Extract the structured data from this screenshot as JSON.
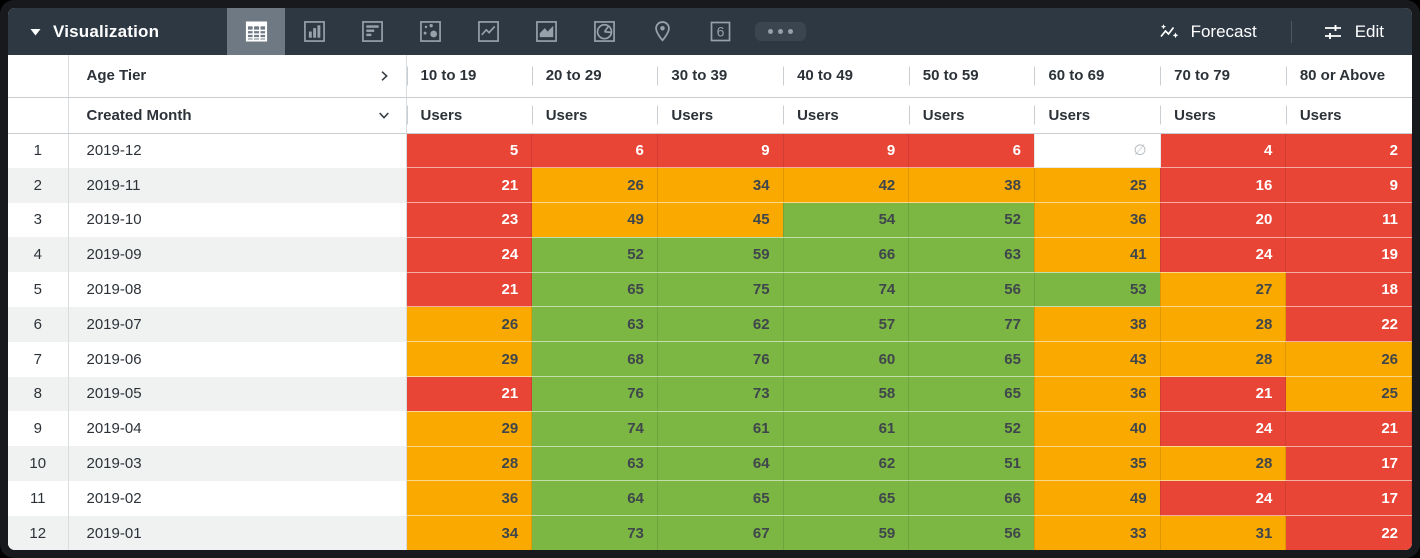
{
  "toolbar": {
    "title": "Visualization",
    "viz_types": [
      {
        "name": "table",
        "selected": true
      },
      {
        "name": "column-chart",
        "selected": false
      },
      {
        "name": "bar-chart",
        "selected": false
      },
      {
        "name": "scatter-chart",
        "selected": false
      },
      {
        "name": "line-chart",
        "selected": false
      },
      {
        "name": "area-chart",
        "selected": false
      },
      {
        "name": "pie-chart",
        "selected": false
      },
      {
        "name": "map",
        "selected": false
      },
      {
        "name": "single-value",
        "glyph": "6",
        "selected": false
      },
      {
        "name": "more",
        "selected": false
      }
    ],
    "forecast_label": "Forecast",
    "edit_label": "Edit"
  },
  "table": {
    "pivot_field": "Age Tier",
    "row_field": "Created Month",
    "measure_label": "Users",
    "null_symbol": "∅",
    "columns": [
      "10 to 19",
      "20 to 29",
      "30 to 39",
      "40 to 49",
      "50 to 59",
      "60 to 69",
      "70 to 79",
      "80 or Above"
    ],
    "rows": [
      {
        "index": 1,
        "month": "2019-12",
        "values": [
          5,
          6,
          9,
          9,
          6,
          null,
          4,
          2
        ]
      },
      {
        "index": 2,
        "month": "2019-11",
        "values": [
          21,
          26,
          34,
          42,
          38,
          25,
          16,
          9
        ]
      },
      {
        "index": 3,
        "month": "2019-10",
        "values": [
          23,
          49,
          45,
          54,
          52,
          36,
          20,
          11
        ]
      },
      {
        "index": 4,
        "month": "2019-09",
        "values": [
          24,
          52,
          59,
          66,
          63,
          41,
          24,
          19
        ]
      },
      {
        "index": 5,
        "month": "2019-08",
        "values": [
          21,
          65,
          75,
          74,
          56,
          53,
          27,
          18
        ]
      },
      {
        "index": 6,
        "month": "2019-07",
        "values": [
          26,
          63,
          62,
          57,
          77,
          38,
          28,
          22
        ]
      },
      {
        "index": 7,
        "month": "2019-06",
        "values": [
          29,
          68,
          76,
          60,
          65,
          43,
          28,
          26
        ]
      },
      {
        "index": 8,
        "month": "2019-05",
        "values": [
          21,
          76,
          73,
          58,
          65,
          36,
          21,
          25
        ]
      },
      {
        "index": 9,
        "month": "2019-04",
        "values": [
          29,
          74,
          61,
          61,
          52,
          40,
          24,
          21
        ]
      },
      {
        "index": 10,
        "month": "2019-03",
        "values": [
          28,
          63,
          64,
          62,
          51,
          35,
          28,
          17
        ]
      },
      {
        "index": 11,
        "month": "2019-02",
        "values": [
          36,
          64,
          65,
          65,
          66,
          49,
          24,
          17
        ]
      },
      {
        "index": 12,
        "month": "2019-01",
        "values": [
          34,
          73,
          67,
          59,
          56,
          33,
          31,
          22
        ]
      }
    ],
    "conditional_format": {
      "red_below": 25,
      "green_at_or_above": 50,
      "colors": {
        "red": "#e94537",
        "orange": "#f9a900",
        "green": "#7cb643"
      },
      "text_on_red": "#ffffff",
      "text_on_other": "#3f464c"
    }
  }
}
